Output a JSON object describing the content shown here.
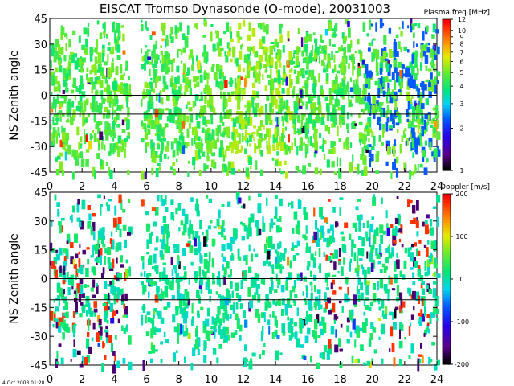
{
  "figure": {
    "title": "EISCAT Tromso Dynasonde (O-mode),  20031003",
    "footer": "4 Oct 2003 01:28"
  },
  "chart_data": [
    {
      "type": "heatmap",
      "title": "EISCAT Tromso Dynasonde (O-mode),  20031003",
      "xlabel": "",
      "ylabel": "NS Zenith angle",
      "xlim": [
        0,
        24
      ],
      "ylim": [
        -45,
        45
      ],
      "x_ticks": [
        "0",
        "2",
        "4",
        "6",
        "8",
        "10",
        "12",
        "14",
        "16",
        "18",
        "20",
        "22",
        "24"
      ],
      "y_ticks": [
        "-45",
        "-30",
        "-15",
        "0",
        "15",
        "30",
        "45"
      ],
      "reference_lines": [
        {
          "y": 0,
          "color": "#000000"
        },
        {
          "y": -11,
          "color": "#000000"
        }
      ],
      "data_gaps_hours": [
        [
          4.9,
          5.6
        ]
      ],
      "colorbar": {
        "title": "Plasma freq [MHz]",
        "scale": "log",
        "range": [
          1,
          12
        ],
        "ticks": [
          "1",
          "2",
          "3",
          "4",
          "5",
          "6",
          "7",
          "8",
          "9",
          "10",
          "12"
        ]
      },
      "dominant_color_by_hour": [
        {
          "hour": 0,
          "value_mhz": 4
        },
        {
          "hour": 4,
          "value_mhz": 4
        },
        {
          "hour": 8,
          "value_mhz": 4
        },
        {
          "hour": 12,
          "value_mhz": 4.5
        },
        {
          "hour": 16,
          "value_mhz": 4
        },
        {
          "hour": 20,
          "value_mhz": 3
        },
        {
          "hour": 22,
          "value_mhz": 2.5
        }
      ]
    },
    {
      "type": "heatmap",
      "title": "",
      "xlabel": "",
      "ylabel": "NS Zenith angle",
      "xlim": [
        0,
        24
      ],
      "ylim": [
        -45,
        45
      ],
      "x_ticks": [
        "0",
        "2",
        "4",
        "6",
        "8",
        "10",
        "12",
        "14",
        "16",
        "18",
        "20",
        "22",
        "24"
      ],
      "y_ticks": [
        "-45",
        "-30",
        "-15",
        "0",
        "15",
        "30",
        "45"
      ],
      "reference_lines": [
        {
          "y": 0,
          "color": "#000000"
        },
        {
          "y": -11,
          "color": "#000000"
        }
      ],
      "data_gaps_hours": [
        [
          4.9,
          5.6
        ]
      ],
      "colorbar": {
        "title": "Doppler [m/s]",
        "scale": "linear",
        "range": [
          -200,
          200
        ],
        "ticks": [
          "-200",
          "-100",
          "0",
          "100",
          "200"
        ]
      },
      "dominant_color_by_hour": [
        {
          "hour": 0,
          "value_ms": 20
        },
        {
          "hour": 4,
          "value_ms": 30
        },
        {
          "hour": 8,
          "value_ms": 20
        },
        {
          "hour": 12,
          "value_ms": 25
        },
        {
          "hour": 16,
          "value_ms": 20
        },
        {
          "hour": 20,
          "value_ms": 10
        },
        {
          "hour": 22,
          "value_ms": 0
        }
      ]
    }
  ]
}
